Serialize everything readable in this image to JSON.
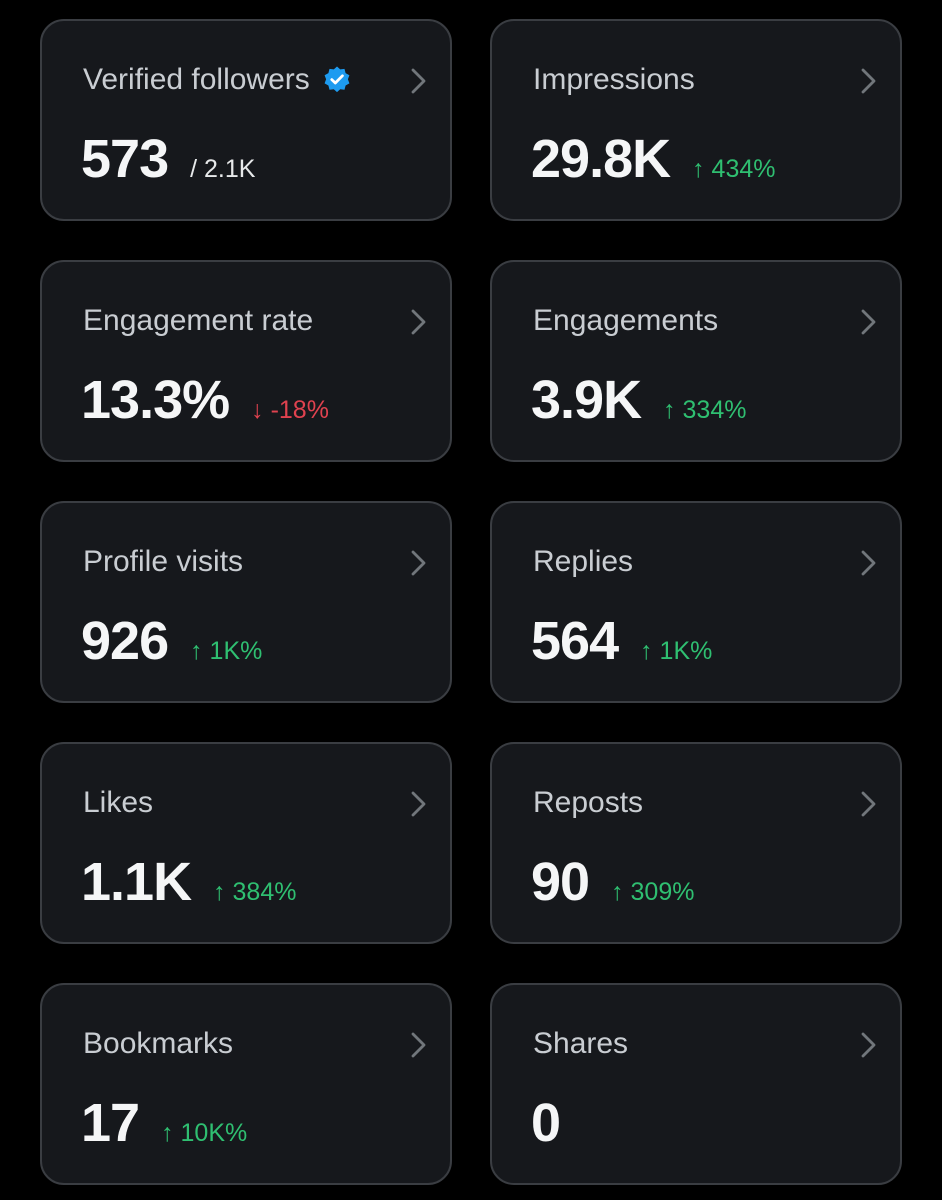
{
  "colors": {
    "background": "#000000",
    "card_background": "#16181c",
    "card_border": "#3a3d42",
    "verified_blue": "#1d9bf0",
    "positive": "#2fbf71",
    "negative": "#e0424f"
  },
  "cards": [
    {
      "title": "Verified followers",
      "value": "573",
      "sub": "/ 2.1K",
      "change": "",
      "direction": "none",
      "verified_icon": "verified-badge-icon"
    },
    {
      "title": "Impressions",
      "value": "29.8K",
      "sub": "",
      "change": "↑ 434%",
      "direction": "up"
    },
    {
      "title": "Engagement rate",
      "value": "13.3%",
      "sub": "",
      "change": "↓ -18%",
      "direction": "down"
    },
    {
      "title": "Engagements",
      "value": "3.9K",
      "sub": "",
      "change": "↑ 334%",
      "direction": "up"
    },
    {
      "title": "Profile visits",
      "value": "926",
      "sub": "",
      "change": "↑ 1K%",
      "direction": "up"
    },
    {
      "title": "Replies",
      "value": "564",
      "sub": "",
      "change": "↑ 1K%",
      "direction": "up"
    },
    {
      "title": "Likes",
      "value": "1.1K",
      "sub": "",
      "change": "↑ 384%",
      "direction": "up"
    },
    {
      "title": "Reposts",
      "value": "90",
      "sub": "",
      "change": "↑ 309%",
      "direction": "up"
    },
    {
      "title": "Bookmarks",
      "value": "17",
      "sub": "",
      "change": "↑ 10K%",
      "direction": "up"
    },
    {
      "title": "Shares",
      "value": "0",
      "sub": "",
      "change": "",
      "direction": "none"
    }
  ]
}
